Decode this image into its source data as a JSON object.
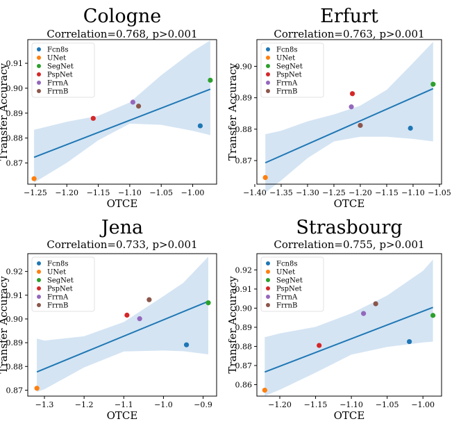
{
  "figure": {
    "legend_labels": [
      "Fcn8s",
      "UNet",
      "SegNet",
      "PspNet",
      "FrrnA",
      "FrrnB"
    ],
    "colors": {
      "Fcn8s": "#1f77b4",
      "UNet": "#ff7f0e",
      "SegNet": "#2ca02c",
      "PspNet": "#d62728",
      "FrrnA": "#9467bd",
      "FrrnB": "#8c564b",
      "regression": "#1f77b4",
      "band": "#c6dbef"
    }
  },
  "chart_data": [
    {
      "type": "scatter",
      "title": "Cologne",
      "subtitle": "Correlation=0.768, p>0.001",
      "xlabel": "OTCE",
      "ylabel": "Transfer Accuracy",
      "xlim": [
        -1.262,
        -0.962
      ],
      "ylim": [
        0.8615,
        0.9195
      ],
      "xticks": [
        -1.25,
        -1.2,
        -1.15,
        -1.1,
        -1.05,
        -1.0
      ],
      "xtick_labels": [
        "−1.25",
        "−1.20",
        "−1.15",
        "−1.10",
        "−1.05",
        "−1.00"
      ],
      "yticks": [
        0.87,
        0.88,
        0.89,
        0.9,
        0.91
      ],
      "ytick_labels": [
        "0.87",
        "0.88",
        "0.89",
        "0.90",
        "0.91"
      ],
      "legend_position": "top-left",
      "points": [
        {
          "name": "Fcn8s",
          "x": -0.988,
          "y": 0.8849
        },
        {
          "name": "UNet",
          "x": -1.252,
          "y": 0.8637
        },
        {
          "name": "SegNet",
          "x": -0.972,
          "y": 0.9032
        },
        {
          "name": "PspNet",
          "x": -1.158,
          "y": 0.8879
        },
        {
          "name": "FrrnA",
          "x": -1.095,
          "y": 0.8944
        },
        {
          "name": "FrrnB",
          "x": -1.086,
          "y": 0.8928
        }
      ],
      "regression": {
        "x": [
          -1.252,
          -0.972
        ],
        "y": [
          0.8723,
          0.8996
        ]
      },
      "band": {
        "x": [
          -1.252,
          -1.2,
          -1.15,
          -1.1,
          -1.05,
          -1.0,
          -0.972
        ],
        "upper": [
          0.8833,
          0.8865,
          0.8889,
          0.8943,
          0.9052,
          0.9148,
          0.9192
        ],
        "lower": [
          0.8621,
          0.8701,
          0.8791,
          0.8858,
          0.8853,
          0.8829,
          0.8812
        ]
      }
    },
    {
      "type": "scatter",
      "title": "Erfurt",
      "subtitle": "Correlation=0.763, p>0.001",
      "xlabel": "OTCE",
      "ylabel": "Transfer Accuracy",
      "xlim": [
        -1.396,
        -1.046
      ],
      "ylim": [
        0.8625,
        0.9085
      ],
      "xticks": [
        -1.4,
        -1.35,
        -1.3,
        -1.25,
        -1.2,
        -1.15,
        -1.1,
        -1.05
      ],
      "xtick_labels": [
        "−1.40",
        "−1.35",
        "−1.30",
        "−1.25",
        "−1.20",
        "−1.15",
        "−1.10",
        "−1.05"
      ],
      "yticks": [
        0.87,
        0.88,
        0.89,
        0.9
      ],
      "ytick_labels": [
        "0.87",
        "0.88",
        "0.89",
        "0.90"
      ],
      "legend_position": "top-left",
      "points": [
        {
          "name": "Fcn8s",
          "x": -1.105,
          "y": 0.8803
        },
        {
          "name": "UNet",
          "x": -1.38,
          "y": 0.8646
        },
        {
          "name": "SegNet",
          "x": -1.062,
          "y": 0.8943
        },
        {
          "name": "PspNet",
          "x": -1.215,
          "y": 0.8913
        },
        {
          "name": "FrrnA",
          "x": -1.217,
          "y": 0.8871
        },
        {
          "name": "FrrnB",
          "x": -1.2,
          "y": 0.8812
        }
      ],
      "regression": {
        "x": [
          -1.38,
          -1.062
        ],
        "y": [
          0.8693,
          0.8929
        ]
      },
      "band": {
        "x": [
          -1.38,
          -1.35,
          -1.3,
          -1.25,
          -1.2,
          -1.15,
          -1.1,
          -1.062
        ],
        "upper": [
          0.8784,
          0.8795,
          0.8825,
          0.8847,
          0.8875,
          0.8925,
          0.9011,
          0.9078
        ],
        "lower": [
          0.8598,
          0.8637,
          0.8708,
          0.8761,
          0.8776,
          0.8776,
          0.8769,
          0.8761
        ]
      }
    },
    {
      "type": "scatter",
      "title": "Jena",
      "subtitle": "Correlation=0.733, p>0.001",
      "xlabel": "OTCE",
      "ylabel": "Transfer Accuracy",
      "xlim": [
        -1.342,
        -0.866
      ],
      "ylim": [
        0.8675,
        0.9275
      ],
      "xticks": [
        -1.3,
        -1.2,
        -1.1,
        -1.0,
        -0.9
      ],
      "xtick_labels": [
        "−1.3",
        "−1.2",
        "−1.1",
        "−1.0",
        "−0.9"
      ],
      "yticks": [
        0.87,
        0.88,
        0.89,
        0.9,
        0.91,
        0.92
      ],
      "ytick_labels": [
        "0.87",
        "0.88",
        "0.89",
        "0.90",
        "0.91",
        "0.92"
      ],
      "legend_position": "top-left",
      "points": [
        {
          "name": "Fcn8s",
          "x": -0.942,
          "y": 0.8891
        },
        {
          "name": "UNet",
          "x": -1.319,
          "y": 0.8708
        },
        {
          "name": "SegNet",
          "x": -0.887,
          "y": 0.9068
        },
        {
          "name": "PspNet",
          "x": -1.092,
          "y": 0.9016
        },
        {
          "name": "FrrnA",
          "x": -1.06,
          "y": 0.9001
        },
        {
          "name": "FrrnB",
          "x": -1.036,
          "y": 0.9081
        }
      ],
      "regression": {
        "x": [
          -1.319,
          -0.887
        ],
        "y": [
          0.8777,
          0.9074
        ]
      },
      "band": {
        "x": [
          -1.319,
          -1.3,
          -1.2,
          -1.1,
          -1.0,
          -0.95,
          -0.887
        ],
        "upper": [
          0.8917,
          0.8909,
          0.8927,
          0.8987,
          0.9096,
          0.9152,
          0.9262
        ],
        "lower": [
          0.8693,
          0.8704,
          0.8796,
          0.8863,
          0.8867,
          0.8864,
          0.8851
        ]
      }
    },
    {
      "type": "scatter",
      "title": "Strasbourg",
      "subtitle": "Correlation=0.755, p>0.001",
      "xlabel": "OTCE",
      "ylabel": "Transfer Accuracy",
      "xlim": [
        -1.232,
        -0.974
      ],
      "ylim": [
        0.854,
        0.9285
      ],
      "xticks": [
        -1.2,
        -1.15,
        -1.1,
        -1.05,
        -1.0
      ],
      "xtick_labels": [
        "−1.20",
        "−1.15",
        "−1.10",
        "−1.05",
        "−1.00"
      ],
      "yticks": [
        0.86,
        0.87,
        0.88,
        0.89,
        0.9,
        0.91,
        0.92
      ],
      "ytick_labels": [
        "0.86",
        "0.87",
        "0.88",
        "0.89",
        "0.90",
        "0.91",
        "0.92"
      ],
      "legend_position": "top-left",
      "points": [
        {
          "name": "Fcn8s",
          "x": -1.019,
          "y": 0.8825
        },
        {
          "name": "UNet",
          "x": -1.221,
          "y": 0.8571
        },
        {
          "name": "SegNet",
          "x": -0.986,
          "y": 0.8962
        },
        {
          "name": "PspNet",
          "x": -1.145,
          "y": 0.8805
        },
        {
          "name": "FrrnA",
          "x": -1.083,
          "y": 0.8972
        },
        {
          "name": "FrrnB",
          "x": -1.066,
          "y": 0.9023
        }
      ],
      "regression": {
        "x": [
          -1.221,
          -0.986
        ],
        "y": [
          0.8666,
          0.9004
        ]
      },
      "band": {
        "x": [
          -1.221,
          -1.2,
          -1.15,
          -1.1,
          -1.05,
          -1.0,
          -0.986
        ],
        "upper": [
          0.8848,
          0.8868,
          0.8902,
          0.8973,
          0.9066,
          0.9195,
          0.9254
        ],
        "lower": [
          0.8541,
          0.8573,
          0.8663,
          0.8757,
          0.8797,
          0.8821,
          0.8825
        ]
      }
    }
  ]
}
